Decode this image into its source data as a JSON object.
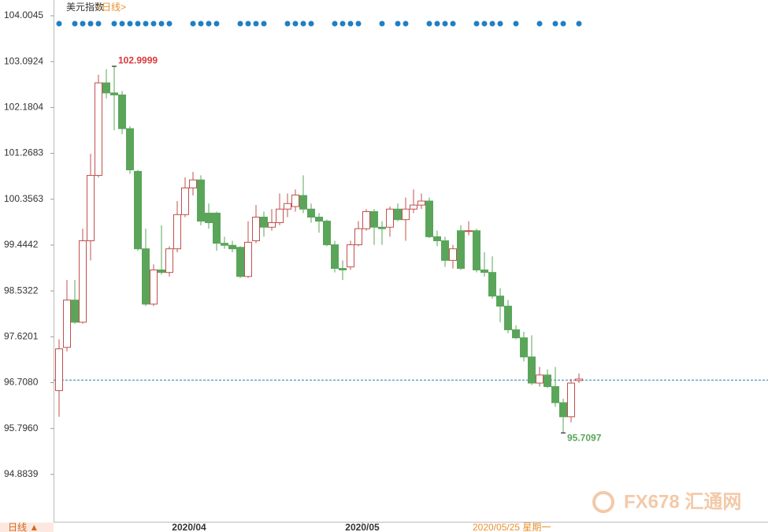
{
  "chart_data": {
    "type": "candlestick",
    "title": "美元指数",
    "subtitle": "<日线>",
    "period_label": "日线 ▲",
    "cursor_label": "2020/05/25 星期一",
    "watermark": "FX678 汇通网",
    "categories": [
      null,
      null,
      null,
      null,
      null,
      null,
      null,
      null,
      null,
      null,
      null,
      null,
      null,
      null,
      null,
      null,
      "2020/04",
      null,
      null,
      null,
      null,
      null,
      null,
      null,
      null,
      null,
      null,
      null,
      null,
      null,
      null,
      null,
      null,
      null,
      null,
      null,
      null,
      null,
      "2020/05",
      null,
      null,
      null,
      null,
      null,
      null,
      null,
      null,
      null,
      null,
      null,
      null,
      null,
      null,
      null,
      null,
      null,
      null,
      null,
      null,
      null,
      null,
      null,
      null,
      null,
      null,
      null,
      null
    ],
    "open": [
      96.55,
      97.41,
      98.35,
      97.91,
      99.53,
      100.83,
      102.67,
      102.47,
      102.43,
      101.76,
      100.91,
      99.37,
      98.27,
      98.95,
      98.9,
      99.37,
      100.05,
      100.58,
      100.74,
      100.08,
      100.08,
      99.48,
      99.44,
      99.4,
      98.82,
      99.53,
      100.0,
      99.8,
      99.89,
      100.16,
      100.21,
      100.43,
      100.16,
      100.0,
      99.92,
      99.45,
      98.98,
      99.01,
      99.45,
      99.77,
      100.11,
      99.8,
      99.8,
      100.16,
      99.95,
      100.16,
      100.24,
      100.32,
      99.61,
      99.53,
      99.14,
      99.73,
      99.72,
      99.73,
      98.95,
      98.9,
      98.43,
      98.23,
      97.76,
      97.6,
      97.22,
      96.7,
      96.86,
      96.63,
      96.31,
      96.03,
      96.75
    ],
    "high": [
      97.57,
      98.75,
      98.75,
      99.77,
      101.26,
      102.83,
      102.94,
      102.9999,
      102.51,
      101.81,
      100.94,
      99.77,
      99.06,
      99.84,
      99.42,
      100.32,
      100.79,
      100.9,
      100.83,
      100.27,
      100.11,
      99.61,
      99.53,
      99.42,
      99.92,
      100.24,
      100.11,
      100.16,
      100.47,
      100.47,
      100.55,
      100.83,
      100.27,
      100.08,
      99.95,
      99.53,
      99.14,
      99.53,
      99.92,
      100.16,
      100.16,
      99.92,
      100.21,
      100.27,
      100.39,
      100.55,
      100.47,
      100.39,
      99.73,
      99.61,
      99.45,
      99.84,
      99.92,
      99.77,
      99.3,
      99.22,
      98.59,
      98.35,
      97.85,
      97.72,
      97.65,
      97.02,
      96.97,
      97.02,
      96.39,
      96.78,
      96.89
    ],
    "low": [
      96.03,
      97.33,
      97.88,
      97.88,
      99.14,
      100.79,
      102.36,
      101.73,
      101.65,
      100.86,
      99.33,
      98.23,
      98.23,
      98.86,
      98.82,
      99.3,
      100.0,
      100.43,
      99.84,
      99.77,
      99.33,
      99.37,
      99.3,
      98.79,
      98.79,
      99.48,
      99.61,
      99.73,
      99.84,
      100.0,
      100.11,
      100.08,
      99.89,
      99.69,
      99.42,
      98.9,
      98.75,
      98.95,
      99.42,
      99.73,
      99.45,
      99.45,
      99.61,
      99.92,
      99.53,
      100.08,
      100.16,
      99.58,
      99.42,
      99.01,
      98.98,
      98.95,
      99.64,
      98.9,
      98.82,
      98.38,
      97.91,
      97.69,
      97.57,
      97.13,
      96.66,
      96.63,
      96.6,
      96.23,
      95.7097,
      95.92,
      96.7
    ],
    "close": [
      97.38,
      98.35,
      97.91,
      99.53,
      100.83,
      102.67,
      102.47,
      102.43,
      101.76,
      100.94,
      99.37,
      98.27,
      98.95,
      98.9,
      99.37,
      100.05,
      100.58,
      100.74,
      99.92,
      99.89,
      99.48,
      99.44,
      99.37,
      98.82,
      99.5,
      100.0,
      99.8,
      99.89,
      100.16,
      100.27,
      100.44,
      100.16,
      100.0,
      99.92,
      99.45,
      98.98,
      98.95,
      99.45,
      99.77,
      100.11,
      99.8,
      99.77,
      100.16,
      99.95,
      100.16,
      100.24,
      100.32,
      99.61,
      99.53,
      99.14,
      99.37,
      98.98,
      99.73,
      98.95,
      98.9,
      98.43,
      98.23,
      97.76,
      97.6,
      97.22,
      96.7,
      96.86,
      96.63,
      96.31,
      96.03,
      96.7,
      96.78
    ],
    "up_color": "#c0504d",
    "down_color": "#5aa55a",
    "annotations": [
      {
        "text": "102.9999",
        "color": "#d9383a"
      },
      {
        "text": "95.7097",
        "color": "#5aa55a"
      }
    ],
    "reference_line": 96.76,
    "ylim": [
      93.942,
      104.0045
    ],
    "yticks": [
      104.0045,
      103.0924,
      102.1804,
      101.2683,
      100.3563,
      99.4442,
      98.5322,
      97.6201,
      {
        "value": 96.708,
        "label": "96.7080"
      },
      {
        "value": 95.796,
        "label": "95.7960"
      },
      94.8839
    ]
  }
}
